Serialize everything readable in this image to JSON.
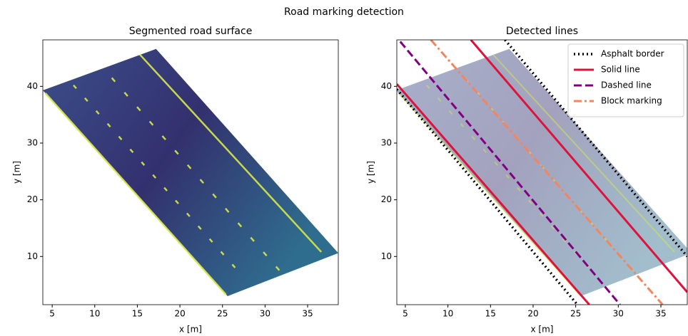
{
  "title": "Road marking detection",
  "chart_data": [
    {
      "type": "image",
      "title": "Segmented road surface",
      "xlabel": "x [m]",
      "ylabel": "y [m]",
      "xlim": [
        3.9,
        38.6
      ],
      "ylim": [
        1.5,
        48.2
      ],
      "xticks": [
        5,
        10,
        15,
        20,
        25,
        30,
        35
      ],
      "yticks": [
        10,
        20,
        30,
        40
      ],
      "grid": false
    },
    {
      "type": "line",
      "title": "Detected lines",
      "xlabel": "x [m]",
      "ylabel": "y [m]",
      "xlim": [
        4.0,
        38.1
      ],
      "ylim": [
        1.5,
        48.2
      ],
      "xticks": [
        5,
        10,
        15,
        20,
        25,
        30,
        35
      ],
      "yticks": [
        10,
        20,
        30,
        40
      ],
      "grid": false,
      "legend": "upper right",
      "series": [
        {
          "name": "Asphalt border",
          "color": "#000000",
          "linestyle": "dotted",
          "x": [
            4.0,
            25.2,
            null,
            16.7,
            38.1
          ],
          "values": [
            39.5,
            1.5,
            null,
            48.2,
            10.0
          ]
        },
        {
          "name": "Solid line",
          "color": "#dc143c",
          "linestyle": "solid",
          "x": [
            4.0,
            26.6,
            null,
            12.7,
            38.1
          ],
          "values": [
            40.4,
            1.5,
            null,
            48.2,
            3.7
          ]
        },
        {
          "name": "Dashed line",
          "color": "#800080",
          "linestyle": "dashed",
          "x": [
            4.4,
            30.2
          ],
          "values": [
            47.9,
            1.5
          ]
        },
        {
          "name": "Block marking",
          "color": "#f4845f",
          "linestyle": "dashdot",
          "x": [
            8.0,
            35.2
          ],
          "values": [
            48.2,
            1.5
          ]
        }
      ]
    }
  ]
}
